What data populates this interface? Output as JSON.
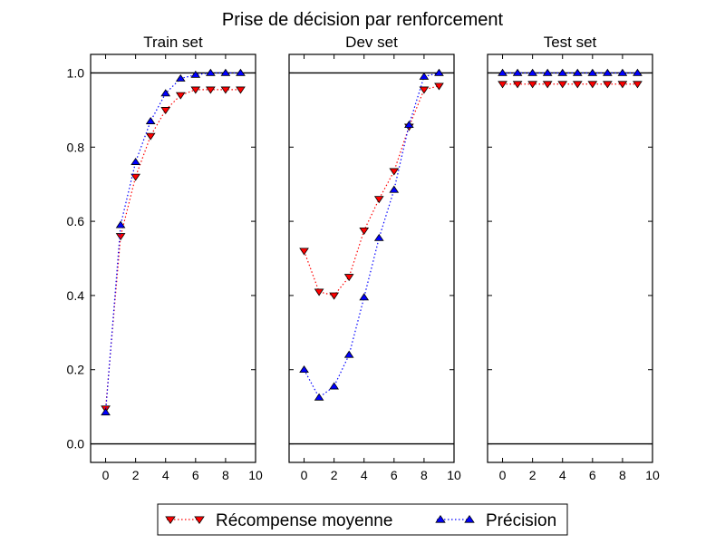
{
  "chart_data": {
    "type": "line",
    "suptitle": "Prise de décision par renforcement",
    "colors": {
      "red": "#ff0000",
      "blue": "#0000ff"
    },
    "legend": {
      "placement": "bottom-center",
      "entries": [
        {
          "label": "Récompense moyenne",
          "color": "#ff0000",
          "marker": "triangle-down",
          "linestyle": "dotted"
        },
        {
          "label": "Précision",
          "color": "#0000ff",
          "marker": "triangle-up",
          "linestyle": "dotted"
        }
      ]
    },
    "xlim": [
      -1,
      10
    ],
    "ylim": [
      -0.05,
      1.05
    ],
    "xticks": [
      "0",
      "2",
      "4",
      "6",
      "8",
      "10"
    ],
    "yticks": [
      "0.0",
      "0.2",
      "0.4",
      "0.6",
      "0.8",
      "1.0"
    ],
    "reference_lines": [
      0.0,
      1.0
    ],
    "panels": [
      {
        "title": "Train set",
        "x": [
          0,
          1,
          2,
          3,
          4,
          5,
          6,
          7,
          8,
          9
        ],
        "series": [
          {
            "name": "Récompense moyenne",
            "values": [
              0.095,
              0.56,
              0.72,
              0.83,
              0.9,
              0.94,
              0.955,
              0.955,
              0.955,
              0.955
            ]
          },
          {
            "name": "Précision",
            "values": [
              0.085,
              0.59,
              0.76,
              0.87,
              0.945,
              0.985,
              0.995,
              1.0,
              1.0,
              1.0
            ]
          }
        ]
      },
      {
        "title": "Dev set",
        "x": [
          0,
          1,
          2,
          3,
          4,
          5,
          6,
          7,
          8,
          9
        ],
        "series": [
          {
            "name": "Récompense moyenne",
            "values": [
              0.52,
              0.41,
              0.4,
              0.45,
              0.575,
              0.66,
              0.735,
              0.855,
              0.955,
              0.965
            ]
          },
          {
            "name": "Précision",
            "values": [
              0.2,
              0.125,
              0.155,
              0.24,
              0.395,
              0.555,
              0.685,
              0.86,
              0.99,
              1.0
            ]
          }
        ]
      },
      {
        "title": "Test set",
        "x": [
          0,
          1,
          2,
          3,
          4,
          5,
          6,
          7,
          8,
          9
        ],
        "series": [
          {
            "name": "Récompense moyenne",
            "values": [
              0.97,
              0.97,
              0.97,
              0.97,
              0.97,
              0.97,
              0.97,
              0.97,
              0.97,
              0.97
            ]
          },
          {
            "name": "Précision",
            "values": [
              1.0,
              1.0,
              1.0,
              1.0,
              1.0,
              1.0,
              1.0,
              1.0,
              1.0,
              1.0
            ]
          }
        ]
      }
    ]
  }
}
